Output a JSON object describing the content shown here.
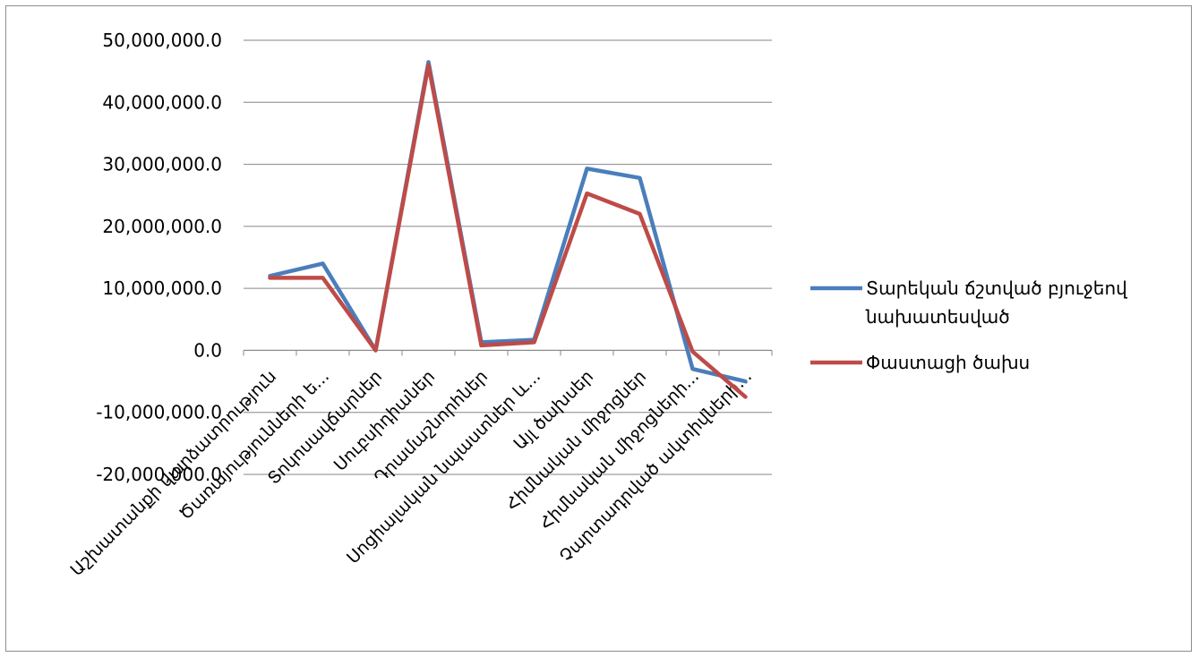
{
  "chart_data": {
    "type": "line",
    "categories": [
      "Աշխատանքի վարձատրություն",
      "Ծառայությունների ե...",
      "Տոկոսավճարներ",
      "Սուբսիդիաներ",
      "Դրամաշնորհներ",
      "Սոցիալական նպաստներ և...",
      "Այլ ծախսեր",
      "Հիմնական միջոցներ",
      "Հիմնական միջոցների...",
      "Չարտադրված ակտիվների..."
    ],
    "series": [
      {
        "name": "Տարեկան ճշտված բյուջեով նախատեսված",
        "color": "#4a7ebb",
        "values": [
          12000000,
          14000000,
          0,
          46500000,
          1300000,
          1700000,
          29300000,
          27800000,
          -3000000,
          -5000000
        ]
      },
      {
        "name": "Փաստացի ծախս",
        "color": "#be4b48",
        "values": [
          11700000,
          11700000,
          0,
          46000000,
          800000,
          1300000,
          25300000,
          22000000,
          -200000,
          -7500000
        ]
      }
    ],
    "ylim": [
      -20000000,
      50000000
    ],
    "yticks": [
      50000000,
      40000000,
      30000000,
      20000000,
      10000000,
      0,
      -10000000,
      -20000000
    ],
    "ytick_labels": [
      "50,000,000.0",
      "40,000,000.0",
      "30,000,000.0",
      "20,000,000.0",
      "10,000,000.0",
      "0.0",
      "-10,000,000.0",
      "-20,000,000.0"
    ],
    "grid": true,
    "legend_position": "right",
    "legend": [
      {
        "lines": [
          "Տարեկան ճշտված բյուջեով",
          "նախատեսված"
        ],
        "color": "#4a7ebb"
      },
      {
        "lines": [
          "Փաստացի ծախս"
        ],
        "color": "#be4b48"
      }
    ]
  }
}
